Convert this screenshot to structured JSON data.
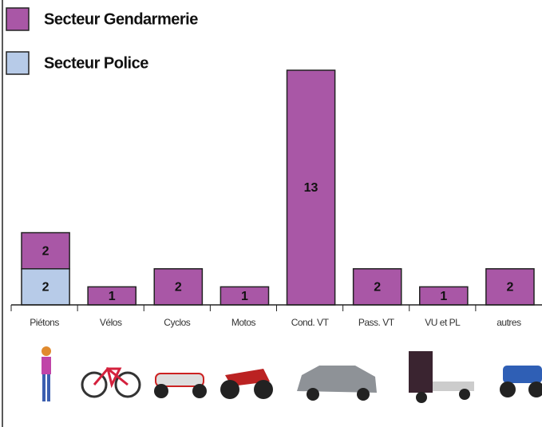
{
  "chart_data": {
    "type": "stacked_bar",
    "categories": [
      "Piétons",
      "Vélos",
      "Cyclos",
      "Motos",
      "Cond. VT",
      "Pass. VT",
      "VU et PL",
      "autres"
    ],
    "series": [
      {
        "name": "Secteur Gendarmerie",
        "color": "#a957a6",
        "values": [
          2,
          1,
          2,
          1,
          13,
          2,
          1,
          2
        ]
      },
      {
        "name": "Secteur Police",
        "color": "#b7cbe8",
        "values": [
          2,
          null,
          null,
          null,
          null,
          null,
          null,
          null
        ]
      }
    ],
    "legend": "top-left"
  }
}
